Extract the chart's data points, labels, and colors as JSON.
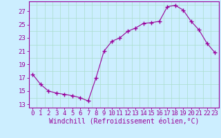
{
  "x": [
    0,
    1,
    2,
    3,
    4,
    5,
    6,
    7,
    8,
    9,
    10,
    11,
    12,
    13,
    14,
    15,
    16,
    17,
    18,
    19,
    20,
    21,
    22,
    23
  ],
  "y": [
    17.5,
    16.0,
    15.0,
    14.7,
    14.5,
    14.3,
    14.0,
    13.5,
    17.0,
    21.0,
    22.5,
    23.0,
    24.0,
    24.5,
    25.2,
    25.3,
    25.5,
    27.7,
    27.9,
    27.2,
    25.5,
    24.2,
    22.2,
    20.8
  ],
  "line_color": "#990099",
  "marker": "+",
  "marker_size": 4,
  "bg_color": "#cceeff",
  "grid_color": "#aaddcc",
  "xlabel": "Windchill (Refroidissement éolien,°C)",
  "yticks": [
    13,
    15,
    17,
    19,
    21,
    23,
    25,
    27
  ],
  "ylim": [
    12.5,
    28.5
  ],
  "xlim": [
    -0.5,
    23.5
  ],
  "tick_fontsize": 6.5,
  "label_fontsize": 7,
  "title": ""
}
